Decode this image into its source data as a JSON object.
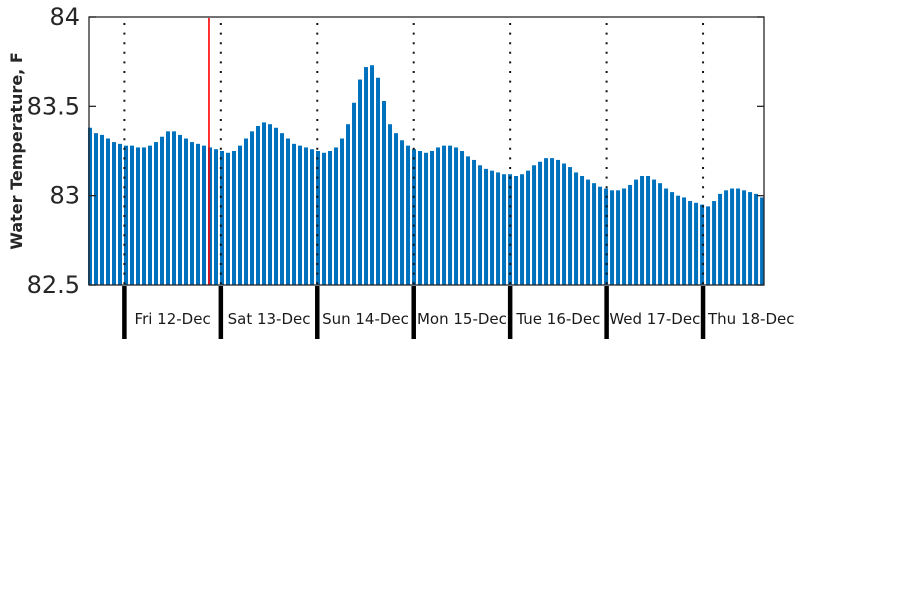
{
  "chart_data": {
    "type": "bar",
    "title": "",
    "ylabel": "Water Temperature, F",
    "ylim": [
      82.5,
      84
    ],
    "yticks": [
      82.5,
      83,
      83.5,
      84
    ],
    "ytick_labels": [
      "82.5",
      "83",
      "83.5",
      "84"
    ],
    "xlim_days": [
      -0.367,
      6.632
    ],
    "day_labels": [
      "Fri 12-Dec",
      "Sat 13-Dec",
      "Sun 14-Dec",
      "Mon 15-Dec",
      "Tue 16-Dec",
      "Wed 17-Dec",
      "Thu 18-Dec"
    ],
    "midnight_gridline_days": [
      0,
      1,
      2,
      3,
      4,
      5,
      6
    ],
    "red_line_day": 0.877,
    "grid_style": "dotted",
    "legend": "none",
    "bar_color": "#0072BD",
    "red_line_color": "#ff0000",
    "grid_color": "#111111",
    "axis_color": "#262626",
    "day_tick_color": "#000000",
    "samples": {
      "start_day": -0.3567,
      "step_day": 0.06222,
      "values": [
        83.38,
        83.35,
        83.34,
        83.32,
        83.3,
        83.29,
        83.28,
        83.28,
        83.27,
        83.27,
        83.28,
        83.3,
        83.33,
        83.36,
        83.36,
        83.34,
        83.32,
        83.3,
        83.29,
        83.28,
        83.27,
        83.26,
        83.25,
        83.24,
        83.25,
        83.28,
        83.32,
        83.36,
        83.39,
        83.41,
        83.4,
        83.38,
        83.35,
        83.32,
        83.29,
        83.28,
        83.27,
        83.26,
        83.25,
        83.24,
        83.25,
        83.27,
        83.32,
        83.4,
        83.52,
        83.65,
        83.72,
        83.73,
        83.66,
        83.53,
        83.4,
        83.35,
        83.31,
        83.28,
        83.26,
        83.25,
        83.24,
        83.25,
        83.27,
        83.28,
        83.28,
        83.27,
        83.25,
        83.22,
        83.2,
        83.17,
        83.15,
        83.14,
        83.13,
        83.12,
        83.12,
        83.11,
        83.12,
        83.14,
        83.17,
        83.19,
        83.21,
        83.21,
        83.2,
        83.18,
        83.16,
        83.13,
        83.11,
        83.09,
        83.07,
        83.05,
        83.04,
        83.03,
        83.03,
        83.04,
        83.06,
        83.09,
        83.11,
        83.11,
        83.09,
        83.07,
        83.04,
        83.02,
        83.0,
        82.99,
        82.97,
        82.96,
        82.95,
        82.94,
        82.97,
        83.01,
        83.03,
        83.04,
        83.04,
        83.03,
        83.02,
        83.01,
        82.99
      ]
    }
  }
}
